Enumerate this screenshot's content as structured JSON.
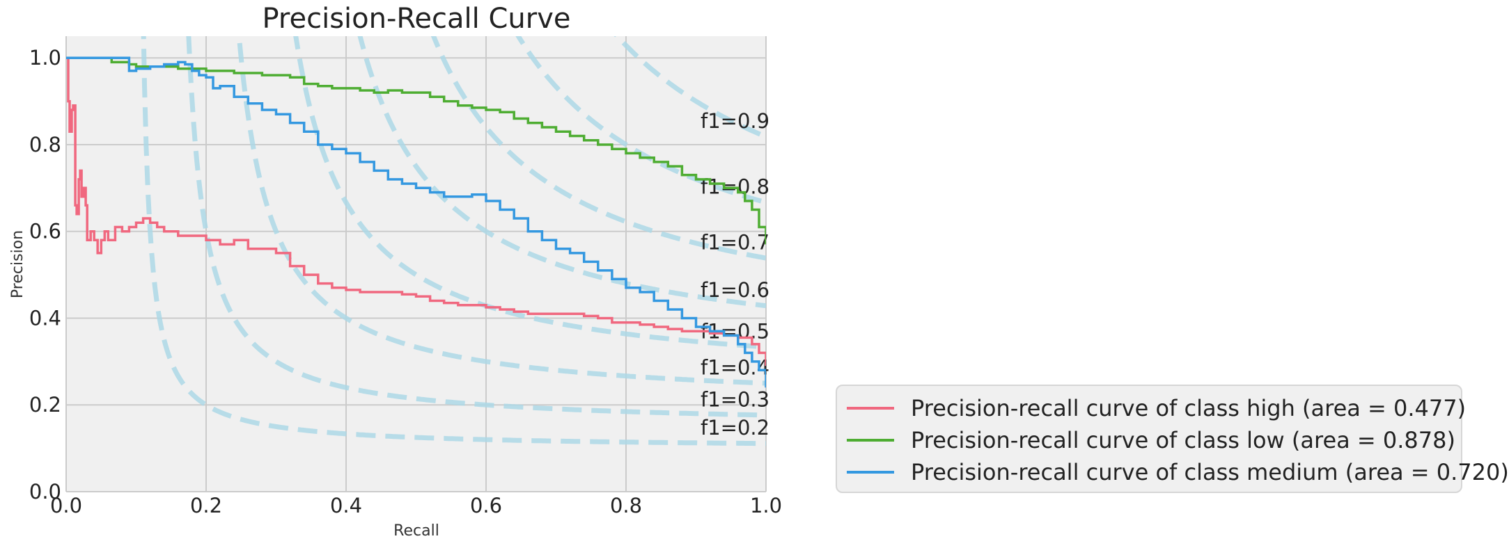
{
  "chart_data": {
    "type": "line",
    "title": "Precision-Recall Curve",
    "xlabel": "Recall",
    "ylabel": "Precision",
    "xlim": [
      0.0,
      1.0
    ],
    "ylim": [
      0.0,
      1.05
    ],
    "xticks": [
      "0.0",
      "0.2",
      "0.4",
      "0.6",
      "0.8",
      "1.0"
    ],
    "yticks": [
      "0.0",
      "0.2",
      "0.4",
      "0.6",
      "0.8",
      "1.0"
    ],
    "grid": true,
    "legend_position": "outside-lower-right",
    "iso_f1": {
      "values": [
        0.2,
        0.3,
        0.4,
        0.5,
        0.6,
        0.7,
        0.8,
        0.9
      ],
      "labels": [
        "f1=0.2",
        "f1=0.3",
        "f1=0.4",
        "f1=0.5",
        "f1=0.6",
        "f1=0.7",
        "f1=0.8",
        "f1=0.9"
      ],
      "color": "#add8e6"
    },
    "series": [
      {
        "name": "Precision-recall curve of class high (area = 0.477)",
        "color": "#f0687f",
        "x": [
          0.0,
          0.003,
          0.005,
          0.008,
          0.01,
          0.013,
          0.015,
          0.018,
          0.02,
          0.022,
          0.025,
          0.028,
          0.03,
          0.035,
          0.04,
          0.045,
          0.05,
          0.055,
          0.06,
          0.07,
          0.08,
          0.09,
          0.1,
          0.11,
          0.12,
          0.13,
          0.14,
          0.15,
          0.16,
          0.18,
          0.2,
          0.22,
          0.24,
          0.26,
          0.28,
          0.3,
          0.32,
          0.34,
          0.36,
          0.38,
          0.4,
          0.42,
          0.44,
          0.46,
          0.48,
          0.5,
          0.52,
          0.54,
          0.56,
          0.58,
          0.6,
          0.62,
          0.64,
          0.66,
          0.68,
          0.7,
          0.72,
          0.74,
          0.76,
          0.78,
          0.8,
          0.82,
          0.84,
          0.86,
          0.88,
          0.9,
          0.92,
          0.94,
          0.96,
          0.98,
          0.99,
          1.0
        ],
        "y": [
          1.0,
          0.9,
          0.83,
          0.88,
          0.89,
          0.66,
          0.64,
          0.72,
          0.74,
          0.68,
          0.7,
          0.66,
          0.58,
          0.6,
          0.58,
          0.55,
          0.58,
          0.6,
          0.58,
          0.61,
          0.6,
          0.61,
          0.62,
          0.63,
          0.62,
          0.61,
          0.6,
          0.6,
          0.59,
          0.59,
          0.58,
          0.57,
          0.58,
          0.56,
          0.56,
          0.55,
          0.52,
          0.5,
          0.48,
          0.47,
          0.465,
          0.46,
          0.46,
          0.46,
          0.455,
          0.45,
          0.44,
          0.435,
          0.43,
          0.43,
          0.425,
          0.42,
          0.415,
          0.41,
          0.41,
          0.41,
          0.41,
          0.405,
          0.4,
          0.39,
          0.39,
          0.385,
          0.38,
          0.375,
          0.37,
          0.37,
          0.365,
          0.36,
          0.355,
          0.34,
          0.32,
          0.29
        ]
      },
      {
        "name": "Precision-recall curve of class low (area = 0.878)",
        "color": "#4ead32",
        "x": [
          0.0,
          0.02,
          0.04,
          0.06,
          0.065,
          0.07,
          0.08,
          0.09,
          0.1,
          0.12,
          0.14,
          0.16,
          0.18,
          0.2,
          0.22,
          0.24,
          0.26,
          0.28,
          0.3,
          0.32,
          0.34,
          0.36,
          0.38,
          0.4,
          0.42,
          0.44,
          0.46,
          0.48,
          0.5,
          0.52,
          0.54,
          0.56,
          0.58,
          0.6,
          0.62,
          0.64,
          0.66,
          0.68,
          0.7,
          0.72,
          0.74,
          0.76,
          0.78,
          0.8,
          0.82,
          0.84,
          0.86,
          0.88,
          0.9,
          0.92,
          0.94,
          0.96,
          0.97,
          0.98,
          0.99,
          1.0
        ],
        "y": [
          1.0,
          1.0,
          1.0,
          1.0,
          0.99,
          0.99,
          0.99,
          0.985,
          0.98,
          0.98,
          0.98,
          0.975,
          0.975,
          0.97,
          0.97,
          0.965,
          0.965,
          0.96,
          0.96,
          0.955,
          0.94,
          0.935,
          0.93,
          0.93,
          0.925,
          0.92,
          0.925,
          0.92,
          0.92,
          0.91,
          0.9,
          0.89,
          0.885,
          0.88,
          0.875,
          0.86,
          0.85,
          0.84,
          0.83,
          0.82,
          0.81,
          0.8,
          0.79,
          0.78,
          0.77,
          0.76,
          0.75,
          0.73,
          0.72,
          0.71,
          0.7,
          0.69,
          0.67,
          0.65,
          0.61,
          0.57
        ]
      },
      {
        "name": "Precision-recall curve of class medium (area = 0.720)",
        "color": "#3498e0",
        "x": [
          0.0,
          0.02,
          0.04,
          0.06,
          0.08,
          0.09,
          0.1,
          0.12,
          0.14,
          0.16,
          0.17,
          0.18,
          0.19,
          0.2,
          0.21,
          0.22,
          0.24,
          0.26,
          0.28,
          0.3,
          0.32,
          0.34,
          0.36,
          0.38,
          0.4,
          0.42,
          0.44,
          0.46,
          0.48,
          0.5,
          0.52,
          0.54,
          0.56,
          0.58,
          0.6,
          0.62,
          0.64,
          0.66,
          0.68,
          0.7,
          0.72,
          0.74,
          0.76,
          0.78,
          0.8,
          0.82,
          0.84,
          0.86,
          0.88,
          0.9,
          0.92,
          0.94,
          0.96,
          0.97,
          0.98,
          0.99,
          1.0
        ],
        "y": [
          1.0,
          1.0,
          1.0,
          1.0,
          1.0,
          0.97,
          0.975,
          0.98,
          0.985,
          0.99,
          0.985,
          0.97,
          0.96,
          0.955,
          0.93,
          0.935,
          0.91,
          0.895,
          0.88,
          0.87,
          0.85,
          0.83,
          0.8,
          0.79,
          0.78,
          0.76,
          0.74,
          0.72,
          0.71,
          0.7,
          0.69,
          0.68,
          0.68,
          0.685,
          0.67,
          0.65,
          0.63,
          0.6,
          0.58,
          0.56,
          0.55,
          0.53,
          0.51,
          0.49,
          0.47,
          0.46,
          0.44,
          0.42,
          0.4,
          0.38,
          0.37,
          0.36,
          0.34,
          0.32,
          0.3,
          0.28,
          0.24
        ]
      }
    ]
  }
}
